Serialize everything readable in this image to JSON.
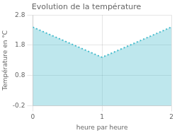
{
  "chart_data": {
    "type": "area",
    "title": "Evolution de la température",
    "xlabel": "heure par heure",
    "ylabel": "Température en °C",
    "x": [
      0,
      1,
      2
    ],
    "values": [
      2.4,
      1.4,
      2.4
    ],
    "baseline": -0.2,
    "color": "#44bbcc",
    "line_style": "dotted",
    "xlim": [
      0,
      2
    ],
    "ylim": [
      -0.2,
      2.8
    ],
    "xticks": [
      0,
      1,
      2
    ],
    "yticks": [
      -0.2,
      0.8,
      1.8,
      2.8
    ],
    "grid": true
  }
}
